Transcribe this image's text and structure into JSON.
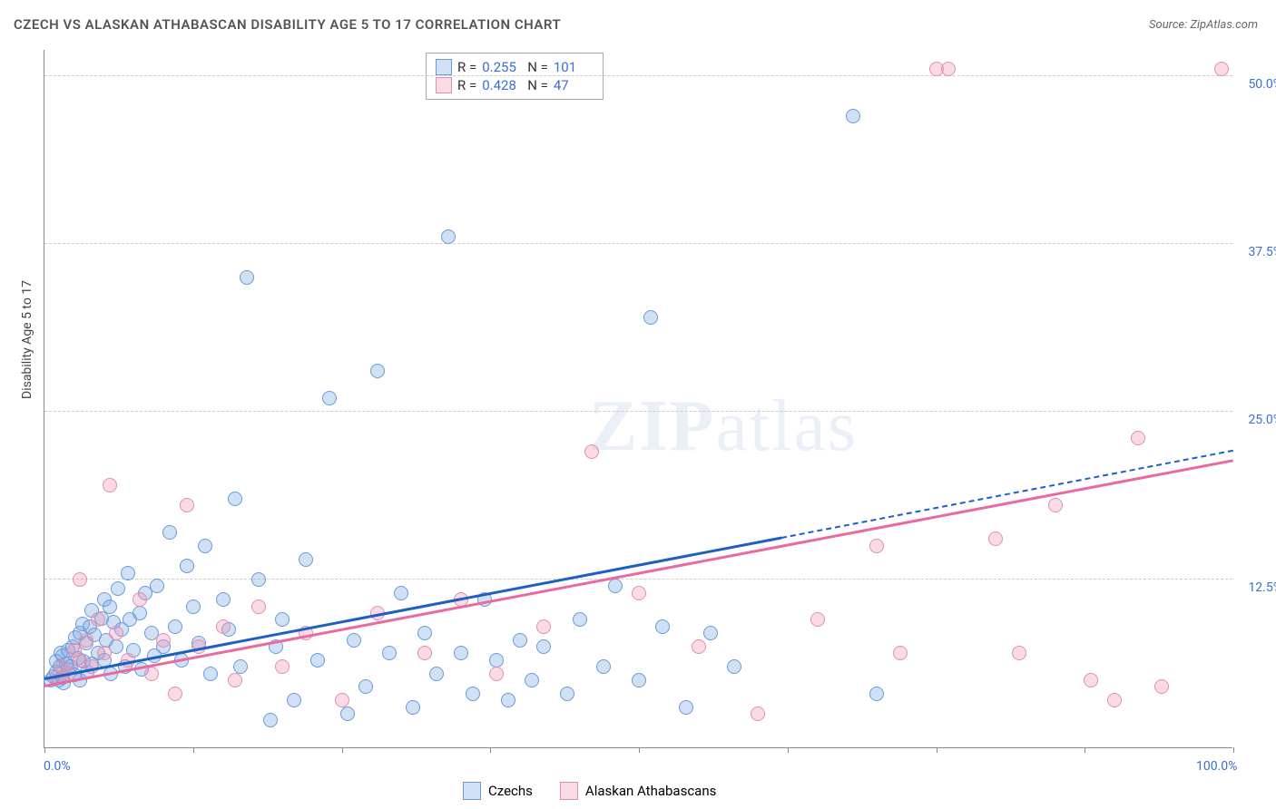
{
  "title": "CZECH VS ALASKAN ATHABASCAN DISABILITY AGE 5 TO 17 CORRELATION CHART",
  "source_label": "Source:",
  "source_value": "ZipAtlas.com",
  "y_axis_title": "Disability Age 5 to 17",
  "watermark_a": "ZIP",
  "watermark_b": "atlas",
  "chart": {
    "type": "scatter",
    "xlim": [
      0,
      100
    ],
    "ylim": [
      0,
      52
    ],
    "x_ticks": [
      0,
      12.5,
      25,
      37.5,
      50,
      62.5,
      75,
      87.5,
      100
    ],
    "x_tick_labels": {
      "0": "0.0%",
      "100": "100.0%"
    },
    "y_grid": [
      12.5,
      25,
      37.5,
      50
    ],
    "y_tick_labels": {
      "12.5": "12.5%",
      "25": "25.0%",
      "37.5": "37.5%",
      "50": "50.0%"
    },
    "background_color": "#ffffff",
    "grid_color": "#cccccc",
    "axis_color": "#888888",
    "tick_label_color": "#3a6fd8",
    "point_radius": 8,
    "series": [
      {
        "name": "Czechs",
        "fill": "rgba(120,165,225,0.35)",
        "stroke": "#6a9ad8",
        "line_color": "#1f5fc4",
        "r": "0.255",
        "n": "101",
        "regression": {
          "x1": 0,
          "y1": 5.0,
          "x2": 62,
          "y2": 15.5,
          "dash_to_x": 100,
          "dash_to_y": 22.0
        },
        "points": [
          [
            0.5,
            5.0
          ],
          [
            0.8,
            5.3
          ],
          [
            1.0,
            5.6
          ],
          [
            1.0,
            6.4
          ],
          [
            1.2,
            5.0
          ],
          [
            1.3,
            6.0
          ],
          [
            1.4,
            7.0
          ],
          [
            1.5,
            5.2
          ],
          [
            1.5,
            6.8
          ],
          [
            1.6,
            4.8
          ],
          [
            1.8,
            6.2
          ],
          [
            2.0,
            5.8
          ],
          [
            2.0,
            7.2
          ],
          [
            2.2,
            6.0
          ],
          [
            2.4,
            7.5
          ],
          [
            2.5,
            5.4
          ],
          [
            2.6,
            8.2
          ],
          [
            2.8,
            6.6
          ],
          [
            3.0,
            8.5
          ],
          [
            3.0,
            5.0
          ],
          [
            3.2,
            9.2
          ],
          [
            3.3,
            6.4
          ],
          [
            3.5,
            7.8
          ],
          [
            3.6,
            5.6
          ],
          [
            3.8,
            9.0
          ],
          [
            4.0,
            10.2
          ],
          [
            4.0,
            6.2
          ],
          [
            4.2,
            8.4
          ],
          [
            4.5,
            7.0
          ],
          [
            4.8,
            9.6
          ],
          [
            5.0,
            11.0
          ],
          [
            5.0,
            6.5
          ],
          [
            5.2,
            8.0
          ],
          [
            5.5,
            10.5
          ],
          [
            5.6,
            5.5
          ],
          [
            5.8,
            9.3
          ],
          [
            6.0,
            7.5
          ],
          [
            6.2,
            11.8
          ],
          [
            6.5,
            8.8
          ],
          [
            6.8,
            6.0
          ],
          [
            7.0,
            13.0
          ],
          [
            7.2,
            9.5
          ],
          [
            7.5,
            7.2
          ],
          [
            8.0,
            10.0
          ],
          [
            8.2,
            5.8
          ],
          [
            8.5,
            11.5
          ],
          [
            9.0,
            8.5
          ],
          [
            9.2,
            6.8
          ],
          [
            9.5,
            12.0
          ],
          [
            10.0,
            7.5
          ],
          [
            10.5,
            16.0
          ],
          [
            11.0,
            9.0
          ],
          [
            11.5,
            6.5
          ],
          [
            12.0,
            13.5
          ],
          [
            12.5,
            10.5
          ],
          [
            13.0,
            7.8
          ],
          [
            13.5,
            15.0
          ],
          [
            14.0,
            5.5
          ],
          [
            15.0,
            11.0
          ],
          [
            15.5,
            8.8
          ],
          [
            16.0,
            18.5
          ],
          [
            16.5,
            6.0
          ],
          [
            17.0,
            35.0
          ],
          [
            18.0,
            12.5
          ],
          [
            19.0,
            2.0
          ],
          [
            19.5,
            7.5
          ],
          [
            20.0,
            9.5
          ],
          [
            21.0,
            3.5
          ],
          [
            22.0,
            14.0
          ],
          [
            23.0,
            6.5
          ],
          [
            24.0,
            26.0
          ],
          [
            25.5,
            2.5
          ],
          [
            26.0,
            8.0
          ],
          [
            27.0,
            4.5
          ],
          [
            28.0,
            28.0
          ],
          [
            29.0,
            7.0
          ],
          [
            30.0,
            11.5
          ],
          [
            31.0,
            3.0
          ],
          [
            32.0,
            8.5
          ],
          [
            33.0,
            5.5
          ],
          [
            34.0,
            38.0
          ],
          [
            35.0,
            7.0
          ],
          [
            36.0,
            4.0
          ],
          [
            37.0,
            11.0
          ],
          [
            38.0,
            6.5
          ],
          [
            39.0,
            3.5
          ],
          [
            40.0,
            8.0
          ],
          [
            41.0,
            5.0
          ],
          [
            42.0,
            7.5
          ],
          [
            44.0,
            4.0
          ],
          [
            45.0,
            9.5
          ],
          [
            47.0,
            6.0
          ],
          [
            48.0,
            12.0
          ],
          [
            50.0,
            5.0
          ],
          [
            51.0,
            32.0
          ],
          [
            52.0,
            9.0
          ],
          [
            54.0,
            3.0
          ],
          [
            56.0,
            8.5
          ],
          [
            58.0,
            6.0
          ],
          [
            68.0,
            47.0
          ],
          [
            70.0,
            4.0
          ]
        ]
      },
      {
        "name": "Alaskan Athabascans",
        "fill": "rgba(240,150,180,0.35)",
        "stroke": "#e08fb0",
        "line_color": "#e86aa0",
        "r": "0.428",
        "n": "47",
        "regression": {
          "x1": 0,
          "y1": 4.5,
          "x2": 100,
          "y2": 21.3
        },
        "points": [
          [
            1.0,
            5.2
          ],
          [
            1.5,
            6.0
          ],
          [
            2.0,
            5.5
          ],
          [
            2.5,
            7.2
          ],
          [
            3.0,
            6.5
          ],
          [
            3.0,
            12.5
          ],
          [
            3.5,
            8.0
          ],
          [
            4.0,
            6.0
          ],
          [
            4.5,
            9.5
          ],
          [
            5.0,
            7.0
          ],
          [
            5.5,
            19.5
          ],
          [
            6.0,
            8.5
          ],
          [
            7.0,
            6.5
          ],
          [
            8.0,
            11.0
          ],
          [
            9.0,
            5.5
          ],
          [
            10.0,
            8.0
          ],
          [
            11.0,
            4.0
          ],
          [
            12.0,
            18.0
          ],
          [
            13.0,
            7.5
          ],
          [
            15.0,
            9.0
          ],
          [
            16.0,
            5.0
          ],
          [
            18.0,
            10.5
          ],
          [
            20.0,
            6.0
          ],
          [
            22.0,
            8.5
          ],
          [
            25.0,
            3.5
          ],
          [
            28.0,
            10.0
          ],
          [
            32.0,
            7.0
          ],
          [
            35.0,
            11.0
          ],
          [
            38.0,
            5.5
          ],
          [
            42.0,
            9.0
          ],
          [
            46.0,
            22.0
          ],
          [
            50.0,
            11.5
          ],
          [
            55.0,
            7.5
          ],
          [
            60.0,
            2.5
          ],
          [
            65.0,
            9.5
          ],
          [
            70.0,
            15.0
          ],
          [
            72.0,
            7.0
          ],
          [
            75.0,
            50.5
          ],
          [
            76.0,
            50.5
          ],
          [
            80.0,
            15.5
          ],
          [
            82.0,
            7.0
          ],
          [
            85.0,
            18.0
          ],
          [
            88.0,
            5.0
          ],
          [
            90.0,
            3.5
          ],
          [
            92.0,
            23.0
          ],
          [
            94.0,
            4.5
          ],
          [
            99.0,
            50.5
          ]
        ]
      }
    ]
  },
  "legend_top": {
    "r_label": "R =",
    "n_label": "N ="
  },
  "legend_bottom": {
    "items": [
      "Czechs",
      "Alaskan Athabascans"
    ]
  }
}
